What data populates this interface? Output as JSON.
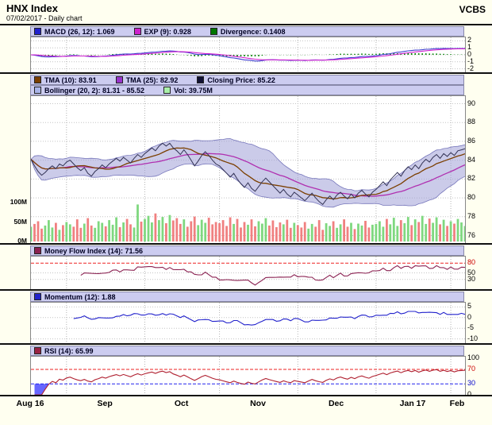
{
  "header": {
    "title": "HNX Index",
    "subtitle": "07/02/2017 - Daily chart",
    "brand": "VCBS"
  },
  "panels": {
    "macd": {
      "legend": [
        {
          "swatch": "#2222CC",
          "label": "MACD (26, 12): 1.069"
        },
        {
          "swatch": "#CC22CC",
          "label": "EXP (9): 0.928"
        },
        {
          "swatch": "#007700",
          "label": "Divergence: 0.1408"
        }
      ],
      "ylim": [
        -2.5,
        2.5
      ],
      "yticks": [
        {
          "label": "2",
          "value": 2
        },
        {
          "label": "1",
          "value": 1
        },
        {
          "label": "0",
          "value": 0
        },
        {
          "label": "-1",
          "value": -1
        },
        {
          "label": "-2",
          "value": -2
        }
      ]
    },
    "price": {
      "legend_row1": [
        {
          "swatch": "#7B3F00",
          "label": "TMA (10): 83.91"
        },
        {
          "swatch": "#9933CC",
          "label": "TMA (25): 82.92"
        },
        {
          "swatch": "#111133",
          "label": "Closing Price: 85.22"
        }
      ],
      "legend_row2": [
        {
          "swatch": "#AAB4E8",
          "label": "Bollinger (20, 2): 81.31 - 85.52"
        },
        {
          "swatch": "#AAF0AA",
          "label": "Vol: 39.75M"
        }
      ],
      "ylim": [
        75.2,
        90.8
      ],
      "yticks": [
        {
          "label": "90",
          "value": 90
        },
        {
          "label": "88",
          "value": 88
        },
        {
          "label": "86",
          "value": 86
        },
        {
          "label": "84",
          "value": 84
        },
        {
          "label": "82",
          "value": 82
        },
        {
          "label": "80",
          "value": 80
        },
        {
          "label": "78",
          "value": 78
        },
        {
          "label": "76",
          "value": 76
        }
      ],
      "volume_ticks": [
        {
          "label": "100M",
          "value": 100
        },
        {
          "label": "50M",
          "value": 50
        },
        {
          "label": "0M",
          "value": 0
        }
      ]
    },
    "mfi": {
      "legend": [
        {
          "swatch": "#8B2252",
          "label": "Money Flow Index (14): 71.56"
        }
      ],
      "ylim": [
        0,
        100
      ],
      "yticks": [
        {
          "label": "80",
          "value": 80,
          "color": "#CC0000"
        },
        {
          "label": "50",
          "value": 50
        },
        {
          "label": "30",
          "value": 30
        }
      ],
      "threshold_lines": [
        {
          "value": 80,
          "color": "#EE2222"
        }
      ]
    },
    "momentum": {
      "legend": [
        {
          "swatch": "#2222CC",
          "label": "Momentum (12): 1.88"
        }
      ],
      "ylim": [
        -12,
        7
      ],
      "yticks": [
        {
          "label": "5",
          "value": 5
        },
        {
          "label": "0",
          "value": 0
        },
        {
          "label": "-5",
          "value": -5
        },
        {
          "label": "-10",
          "value": -10
        }
      ]
    },
    "rsi": {
      "legend": [
        {
          "swatch": "#992244",
          "label": "RSI (14): 65.99"
        }
      ],
      "ylim": [
        0,
        105
      ],
      "yticks": [
        {
          "label": "100",
          "value": 100
        },
        {
          "label": "70",
          "value": 70,
          "color": "#CC0000"
        },
        {
          "label": "30",
          "value": 30,
          "color": "#0000CC"
        },
        {
          "label": "0",
          "value": 0
        }
      ],
      "threshold_lines": [
        {
          "value": 70,
          "color": "#EE2222"
        },
        {
          "value": 30,
          "color": "#2222EE"
        }
      ]
    }
  },
  "xaxis": {
    "labels": [
      "Aug 16",
      "Sep",
      "Oct",
      "Nov",
      "Dec",
      "Jan 17",
      "Feb"
    ],
    "month_start_indices": [
      0,
      10,
      32,
      53,
      75,
      97,
      118
    ]
  },
  "colors": {
    "close_line": "#333355",
    "tma10": "#7B3F00",
    "tma25": "#B030B0",
    "bollinger_fill": "rgba(160,160,215,0.55)",
    "bollinger_edge": "#7777BB",
    "vol_up": "#7FD87F",
    "vol_down": "#F08080",
    "macd_line": "#4040D0",
    "exp_line": "#D020D0",
    "divergence_hist": "#008000",
    "mfi_line": "#8B2252",
    "momentum_line": "#2222CC",
    "rsi_line": "#B02030",
    "rsi_fill_high": "#FF3333",
    "rsi_fill_low": "#3333FF",
    "grid": "#C4C4C4",
    "month_grid": "#B4B4B4",
    "legend_bg": "#CCCCF0",
    "page_bg": "#FFFFF0"
  },
  "chart_data": {
    "type": "line",
    "title": "HNX Index - Daily chart - 07/02/2017",
    "x_labels": [
      "Aug 16",
      "Sep",
      "Oct",
      "Nov",
      "Dec",
      "Jan 17",
      "Feb"
    ],
    "month_start_indices": [
      0,
      10,
      32,
      53,
      75,
      97,
      118
    ],
    "close": [
      84.1,
      83.4,
      82.8,
      82.4,
      82.7,
      83.1,
      83.4,
      83.1,
      83.6,
      83.4,
      83.8,
      84.0,
      83.6,
      83.2,
      82.9,
      83.2,
      82.6,
      82.3,
      82.8,
      83.1,
      83.5,
      83.2,
      83.6,
      83.9,
      84.2,
      83.9,
      84.3,
      84.0,
      83.7,
      84.2,
      84.6,
      84.3,
      84.7,
      85.0,
      85.3,
      85.0,
      85.5,
      85.8,
      85.5,
      85.8,
      85.3,
      85.0,
      84.6,
      85.1,
      84.6,
      84.0,
      83.4,
      83.9,
      84.5,
      84.9,
      84.5,
      84.0,
      83.6,
      83.4,
      83.0,
      82.6,
      82.2,
      82.6,
      82.0,
      81.5,
      81.1,
      81.6,
      81.0,
      80.7,
      81.2,
      81.7,
      82.1,
      81.7,
      81.3,
      80.9,
      80.5,
      80.9,
      80.4,
      80.1,
      80.6,
      80.3,
      80.0,
      79.7,
      80.1,
      80.5,
      80.0,
      79.6,
      79.3,
      79.8,
      80.2,
      79.8,
      80.3,
      80.6,
      80.2,
      79.9,
      80.4,
      80.0,
      80.5,
      80.8,
      80.4,
      80.1,
      80.6,
      80.9,
      81.3,
      81.7,
      81.3,
      81.9,
      82.3,
      82.7,
      82.3,
      82.9,
      83.3,
      83.0,
      83.5,
      83.1,
      83.7,
      84.1,
      83.8,
      84.3,
      84.6,
      84.2,
      84.7,
      84.4,
      84.8,
      84.5,
      85.0,
      85.1,
      85.22
    ],
    "volume_m": [
      38,
      45,
      52,
      33,
      41,
      55,
      36,
      48,
      30,
      42,
      50,
      44,
      38,
      57,
      35,
      46,
      60,
      41,
      35,
      52,
      48,
      39,
      55,
      43,
      62,
      37,
      49,
      58,
      44,
      36,
      95,
      51,
      58,
      66,
      49,
      72,
      55,
      63,
      47,
      68,
      54,
      60,
      45,
      57,
      38,
      52,
      64,
      42,
      56,
      48,
      61,
      44,
      50,
      47,
      55,
      40,
      62,
      45,
      58,
      36,
      50,
      43,
      57,
      39,
      52,
      46,
      60,
      41,
      54,
      37,
      49,
      44,
      56,
      35,
      48,
      42,
      36,
      50,
      33,
      45,
      38,
      55,
      30,
      47,
      40,
      52,
      35,
      44,
      57,
      38,
      48,
      32,
      46,
      41,
      53,
      36,
      43,
      45,
      52,
      38,
      58,
      44,
      61,
      40,
      55,
      47,
      63,
      42,
      57,
      50,
      66,
      45,
      59,
      48,
      62,
      44,
      56,
      40,
      52,
      46,
      58,
      49,
      39.75
    ],
    "indicators": {
      "macd_26_12_last": 1.069,
      "exp_9_last": 0.928,
      "divergence_last": 0.1408,
      "tma_10_last": 83.91,
      "tma_25_last": 82.92,
      "closing_price_last": 85.22,
      "bollinger_20_2_last": "81.31 - 85.52",
      "volume_last": "39.75M",
      "money_flow_index_14_last": 71.56,
      "momentum_12_last": 1.88,
      "rsi_14_last": 65.99
    },
    "panel_ylims": {
      "macd": [
        -2.5,
        2.5
      ],
      "price": [
        75.2,
        90.8
      ],
      "mfi": [
        0,
        100
      ],
      "momentum": [
        -12,
        7
      ],
      "rsi": [
        0,
        105
      ]
    }
  }
}
